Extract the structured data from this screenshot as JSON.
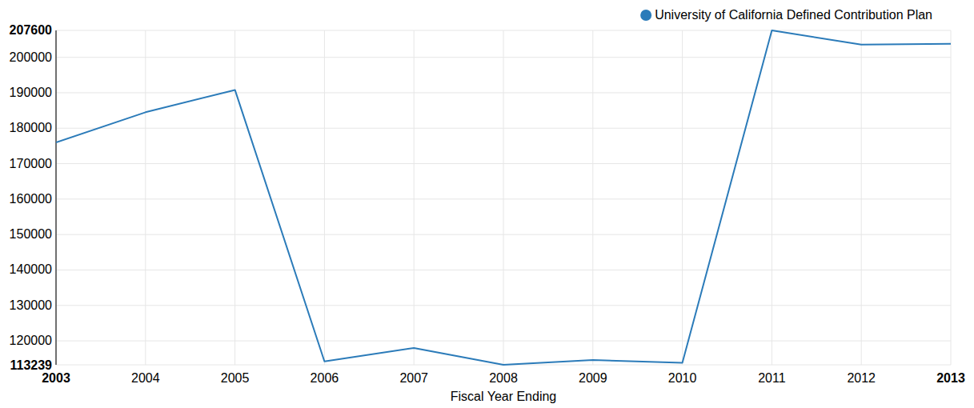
{
  "chart_data": {
    "type": "line",
    "x_label": "Fiscal Year Ending",
    "x": [
      2003,
      2004,
      2005,
      2006,
      2007,
      2008,
      2009,
      2010,
      2011,
      2012,
      2013
    ],
    "series": [
      {
        "name": "University of California Defined Contribution Plan",
        "color": "#2b7bb9",
        "values": [
          176000,
          184500,
          190800,
          114200,
          118000,
          113239,
          114600,
          113800,
          207600,
          203600,
          203800
        ]
      }
    ],
    "xlim": [
      2003,
      2013
    ],
    "xticks": [
      2003,
      2004,
      2005,
      2006,
      2007,
      2008,
      2009,
      2010,
      2011,
      2012,
      2013
    ],
    "ylim": [
      113239,
      207600
    ],
    "yticks": [
      113239,
      120000,
      130000,
      140000,
      150000,
      160000,
      170000,
      180000,
      190000,
      200000,
      207600
    ],
    "grid": true,
    "legend": "top-right"
  }
}
